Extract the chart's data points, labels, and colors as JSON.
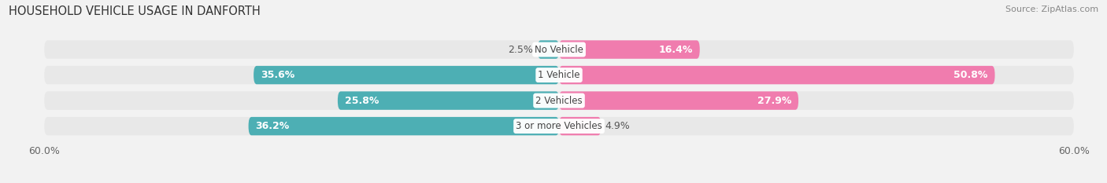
{
  "title": "HOUSEHOLD VEHICLE USAGE IN DANFORTH",
  "source": "Source: ZipAtlas.com",
  "categories": [
    "No Vehicle",
    "1 Vehicle",
    "2 Vehicles",
    "3 or more Vehicles"
  ],
  "owner_values": [
    2.5,
    35.6,
    25.8,
    36.2
  ],
  "renter_values": [
    16.4,
    50.8,
    27.9,
    4.9
  ],
  "owner_color": "#4DAFB4",
  "renter_color": "#F07CAE",
  "xlim": [
    -60,
    60
  ],
  "bg_color": "#f2f2f2",
  "row_bg_color": "#e8e8e8",
  "bar_height": 0.72,
  "title_fontsize": 10.5,
  "source_fontsize": 8,
  "label_fontsize": 9,
  "category_fontsize": 8.5,
  "legend_fontsize": 9,
  "value_threshold": 8
}
